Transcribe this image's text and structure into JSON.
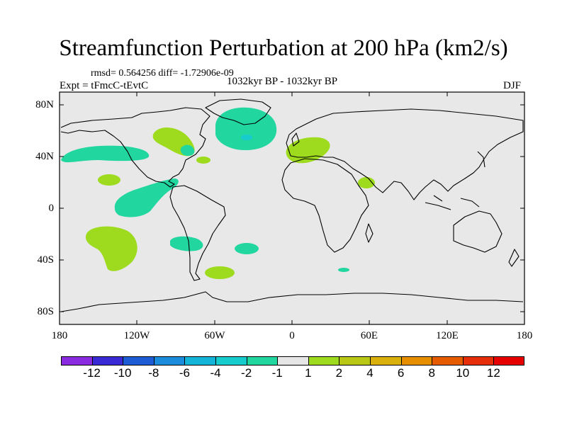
{
  "map": {
    "title": "Streamfunction Perturbation at 200 hPa (km2/s)",
    "stats_line": "rmsd= 0.564256 diff= -1.72906e-09",
    "experiment": "Expt = tFmcC-tEvtC",
    "period": "1032kyr BP - 1032kyr BP",
    "season": "DJF",
    "y_ticks": [
      "80N",
      "40N",
      "0",
      "40S",
      "80S"
    ],
    "x_ticks": [
      "180",
      "120W",
      "60W",
      "0",
      "60E",
      "120E",
      "180"
    ],
    "lon_range": [
      -180,
      180
    ],
    "lat_range": [
      -90,
      90
    ]
  },
  "colorbar": {
    "labels": [
      "-12",
      "-10",
      "-8",
      "-6",
      "-4",
      "-2",
      "-1",
      "1",
      "2",
      "4",
      "6",
      "8",
      "10",
      "12"
    ],
    "colors": [
      "#8a2be2",
      "#3a2ad6",
      "#1d5cd4",
      "#1a8cdb",
      "#14b4d8",
      "#16cccc",
      "#22d6a0",
      "#e6e6e6",
      "#9edb1e",
      "#b8c814",
      "#d9b00c",
      "#e68e00",
      "#e65a00",
      "#e62e0a",
      "#e60000"
    ]
  },
  "anomalies": [
    {
      "id": "pacific-40n-neg",
      "sign": "negative"
    },
    {
      "id": "north-america-pos",
      "sign": "positive"
    },
    {
      "id": "great-lakes-neg",
      "sign": "negative"
    },
    {
      "id": "north-atlantic-neg",
      "sign": "negative"
    },
    {
      "id": "europe-pos",
      "sign": "positive"
    },
    {
      "id": "arabia-pos",
      "sign": "positive"
    },
    {
      "id": "central-pacific-pos",
      "sign": "positive"
    },
    {
      "id": "tropical-pacific-neg",
      "sign": "negative"
    },
    {
      "id": "south-pacific-pos",
      "sign": "positive"
    },
    {
      "id": "south-america-neg",
      "sign": "negative"
    },
    {
      "id": "south-atlantic-neg",
      "sign": "negative"
    },
    {
      "id": "south-atlantic-pos",
      "sign": "positive"
    },
    {
      "id": "southern-indian-neg",
      "sign": "negative"
    }
  ]
}
